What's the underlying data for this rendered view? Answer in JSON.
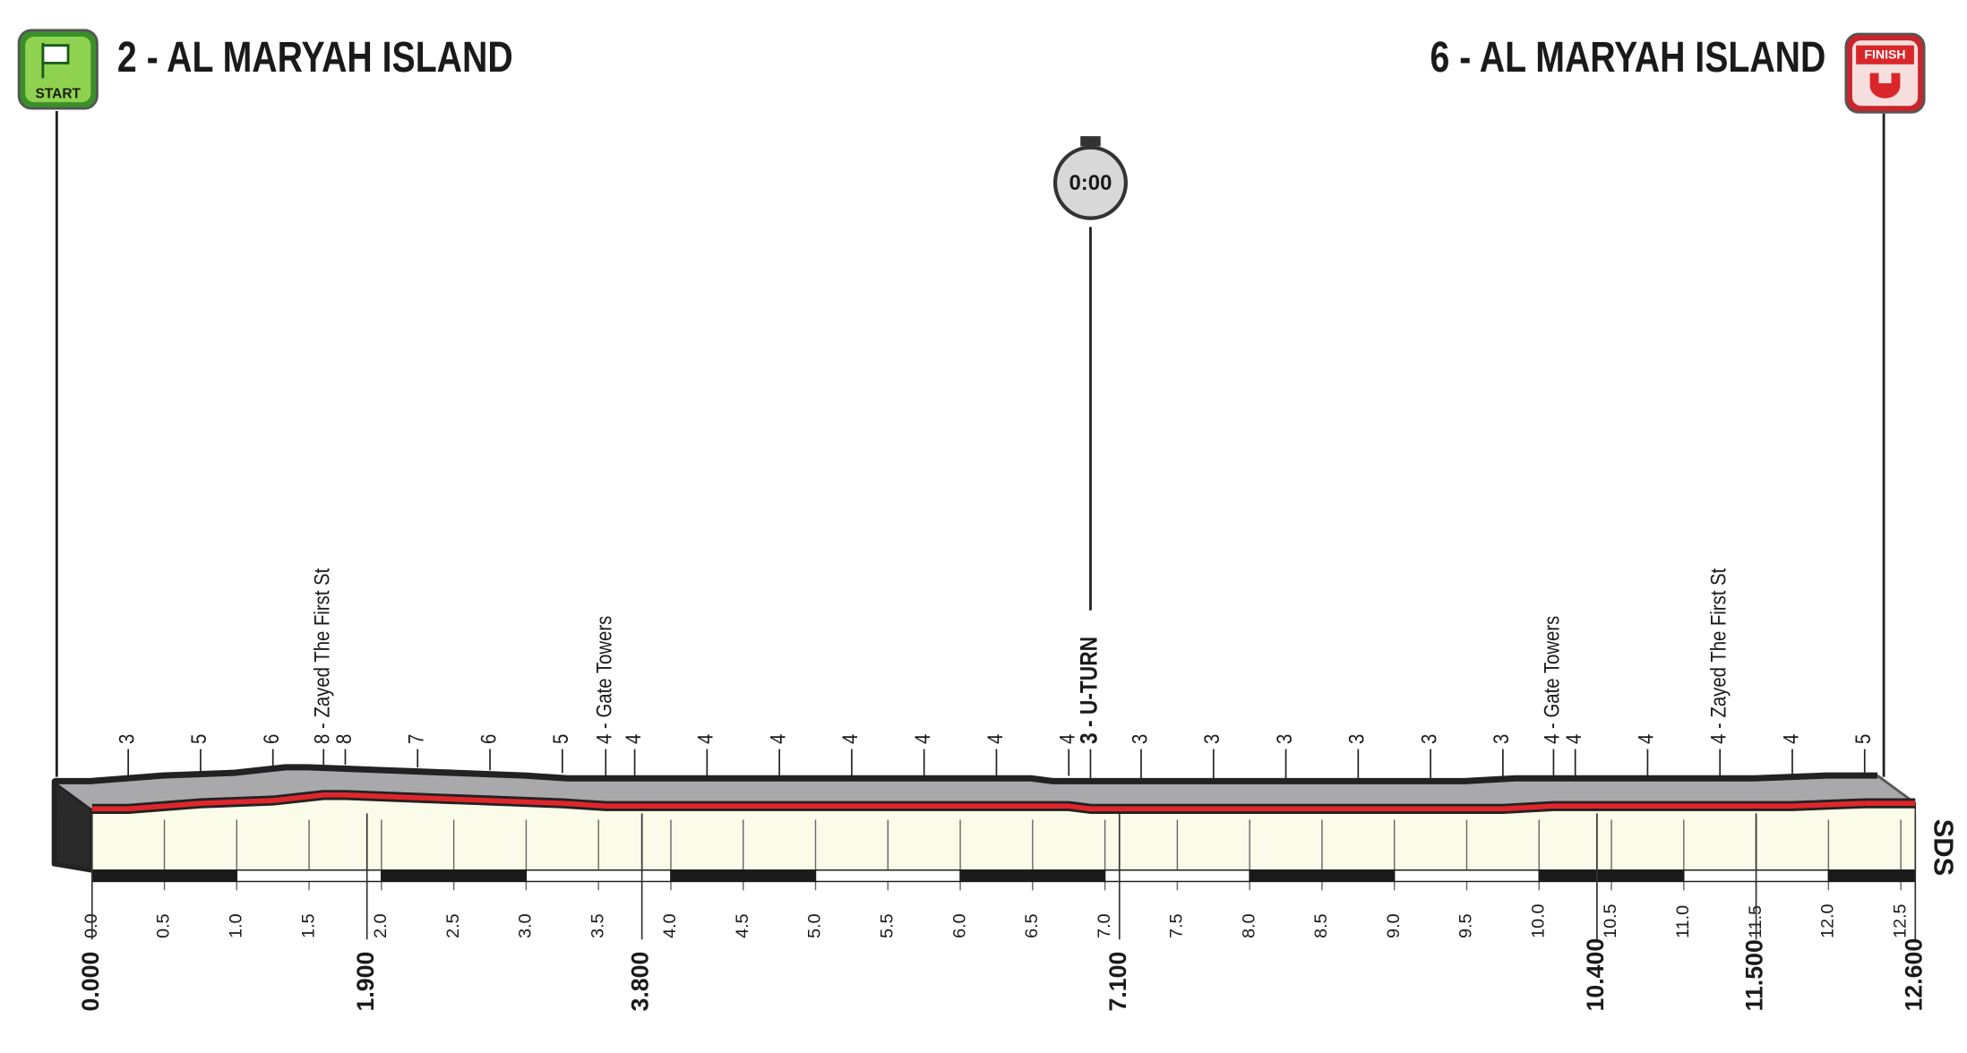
{
  "header": {
    "start": {
      "icon": "START",
      "title": "2 - AL MARYAH ISLAND"
    },
    "finish": {
      "icon": "FINISH",
      "title": "6 - AL MARYAH ISLAND"
    }
  },
  "chart_data": {
    "type": "profile",
    "x": [
      0.25,
      0.75,
      1.25,
      1.6,
      1.75,
      2.25,
      2.75,
      3.25,
      3.55,
      3.75,
      4.25,
      4.75,
      5.25,
      5.75,
      6.25,
      6.75,
      6.9,
      7.25,
      7.75,
      8.25,
      8.75,
      9.25,
      9.75,
      10.1,
      10.25,
      10.75,
      11.25,
      11.75,
      12.25
    ],
    "values": [
      3,
      5,
      6,
      8,
      8,
      7,
      6,
      5,
      4,
      4,
      4,
      4,
      4,
      4,
      4,
      4,
      3,
      3,
      3,
      3,
      3,
      3,
      3,
      4,
      4,
      4,
      4,
      4,
      5
    ],
    "value_labels": [
      "3",
      "5",
      "6",
      "8 - Zayed The First St",
      "8",
      "7",
      "6",
      "5",
      "4 - Gate Towers",
      "4",
      "4",
      "4",
      "4",
      "4",
      "4",
      "4",
      "3 - U-TURN",
      "3",
      "3",
      "3",
      "3",
      "3",
      "3",
      "4 - Gate Towers",
      "4",
      "4",
      "4 - Zayed The First St",
      "4",
      "5"
    ],
    "xlim": [
      0,
      12.6
    ],
    "xticks": [
      {
        "value": 0,
        "label": "0.0"
      },
      0.5,
      {
        "value": 1,
        "label": "1.0"
      },
      1.5,
      {
        "value": 2,
        "label": "2.0"
      },
      2.5,
      {
        "value": 3,
        "label": "3.0"
      },
      3.5,
      {
        "value": 4,
        "label": "4.0"
      },
      4.5,
      {
        "value": 5,
        "label": "5.0"
      },
      5.5,
      {
        "value": 6,
        "label": "6.0"
      },
      6.5,
      {
        "value": 7,
        "label": "7.0"
      },
      7.5,
      {
        "value": 8,
        "label": "8.0"
      },
      8.5,
      {
        "value": 9,
        "label": "9.0"
      },
      9.5,
      {
        "value": 10,
        "label": "10.0"
      },
      10.5,
      {
        "value": 11,
        "label": "11.0"
      },
      11.5,
      {
        "value": 12,
        "label": "12.0"
      },
      12.5
    ],
    "markers": [
      {
        "value": 0,
        "label": "0.000"
      },
      {
        "value": 1.9,
        "label": "1.900"
      },
      {
        "value": 3.8,
        "label": "3.800"
      },
      {
        "value": 7.1,
        "label": "7.100"
      },
      {
        "value": 10.4,
        "label": "10.400"
      },
      {
        "value": 11.5,
        "label": "11.500"
      },
      {
        "value": 12.6,
        "label": "12.600"
      }
    ],
    "timecheck": {
      "label": "0:00",
      "x": 6.9
    },
    "sds": "SDS"
  }
}
